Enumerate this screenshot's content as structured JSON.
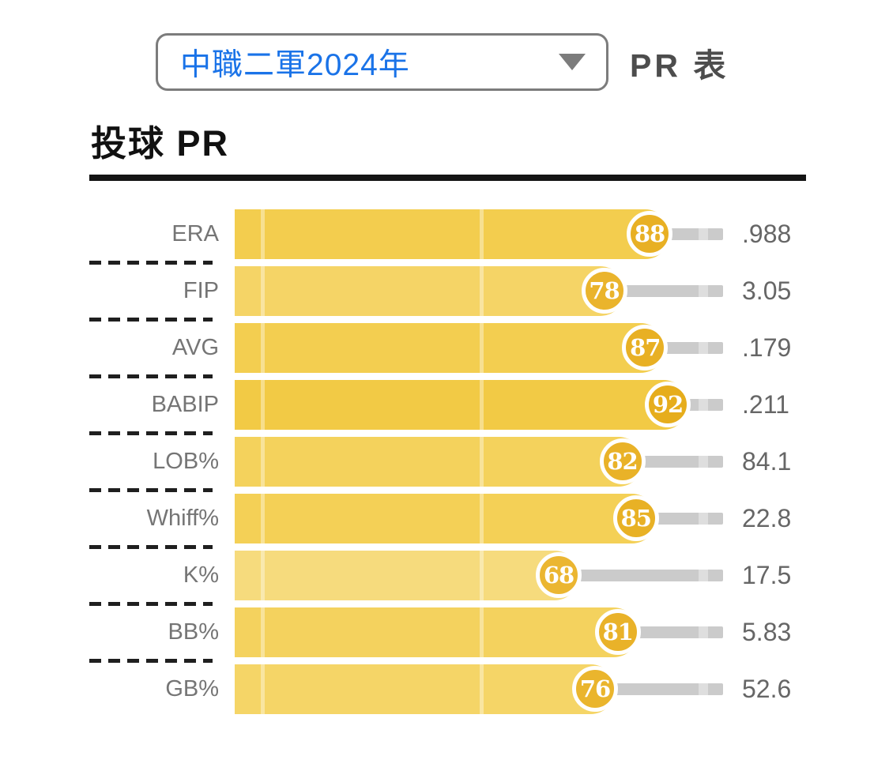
{
  "header": {
    "league_select": {
      "value": "中職二軍2024年"
    },
    "page_label": "PR 表"
  },
  "section": {
    "title": "投球 PR"
  },
  "chart_data": {
    "type": "bar",
    "orientation": "horizontal",
    "title": "投球 PR",
    "x_range": [
      0,
      100
    ],
    "grid": true,
    "rows": [
      {
        "label": "ERA",
        "pr": 88,
        "value": ".988",
        "bar_color": "#f3cd4e",
        "badge_color": "#e8b024"
      },
      {
        "label": "FIP",
        "pr": 78,
        "value": "3.05",
        "bar_color": "#f5d466",
        "badge_color": "#eab42c"
      },
      {
        "label": "AVG",
        "pr": 87,
        "value": ".179",
        "bar_color": "#f3ce50",
        "badge_color": "#e8b024"
      },
      {
        "label": "BABIP",
        "pr": 92,
        "value": ".211",
        "bar_color": "#f2ca45",
        "badge_color": "#e6ad1c"
      },
      {
        "label": "LOB%",
        "pr": 82,
        "value": "84.1",
        "bar_color": "#f4d25c",
        "badge_color": "#e9b228"
      },
      {
        "label": "Whiff%",
        "pr": 85,
        "value": "22.8",
        "bar_color": "#f4d056",
        "badge_color": "#e8b125"
      },
      {
        "label": "K%",
        "pr": 68,
        "value": "17.5",
        "bar_color": "#f6db7d",
        "badge_color": "#ebb631"
      },
      {
        "label": "BB%",
        "pr": 81,
        "value": "5.83",
        "bar_color": "#f4d25e",
        "badge_color": "#e9b229"
      },
      {
        "label": "GB%",
        "pr": 76,
        "value": "52.6",
        "bar_color": "#f5d567",
        "badge_color": "#eab52d"
      }
    ]
  },
  "colors": {
    "accent_blue": "#1a73e8",
    "track_gray": "#cbcbcb",
    "track_gray_light": "#dedede",
    "label_gray": "#757575",
    "value_gray": "#666666",
    "title_black": "#141414"
  }
}
